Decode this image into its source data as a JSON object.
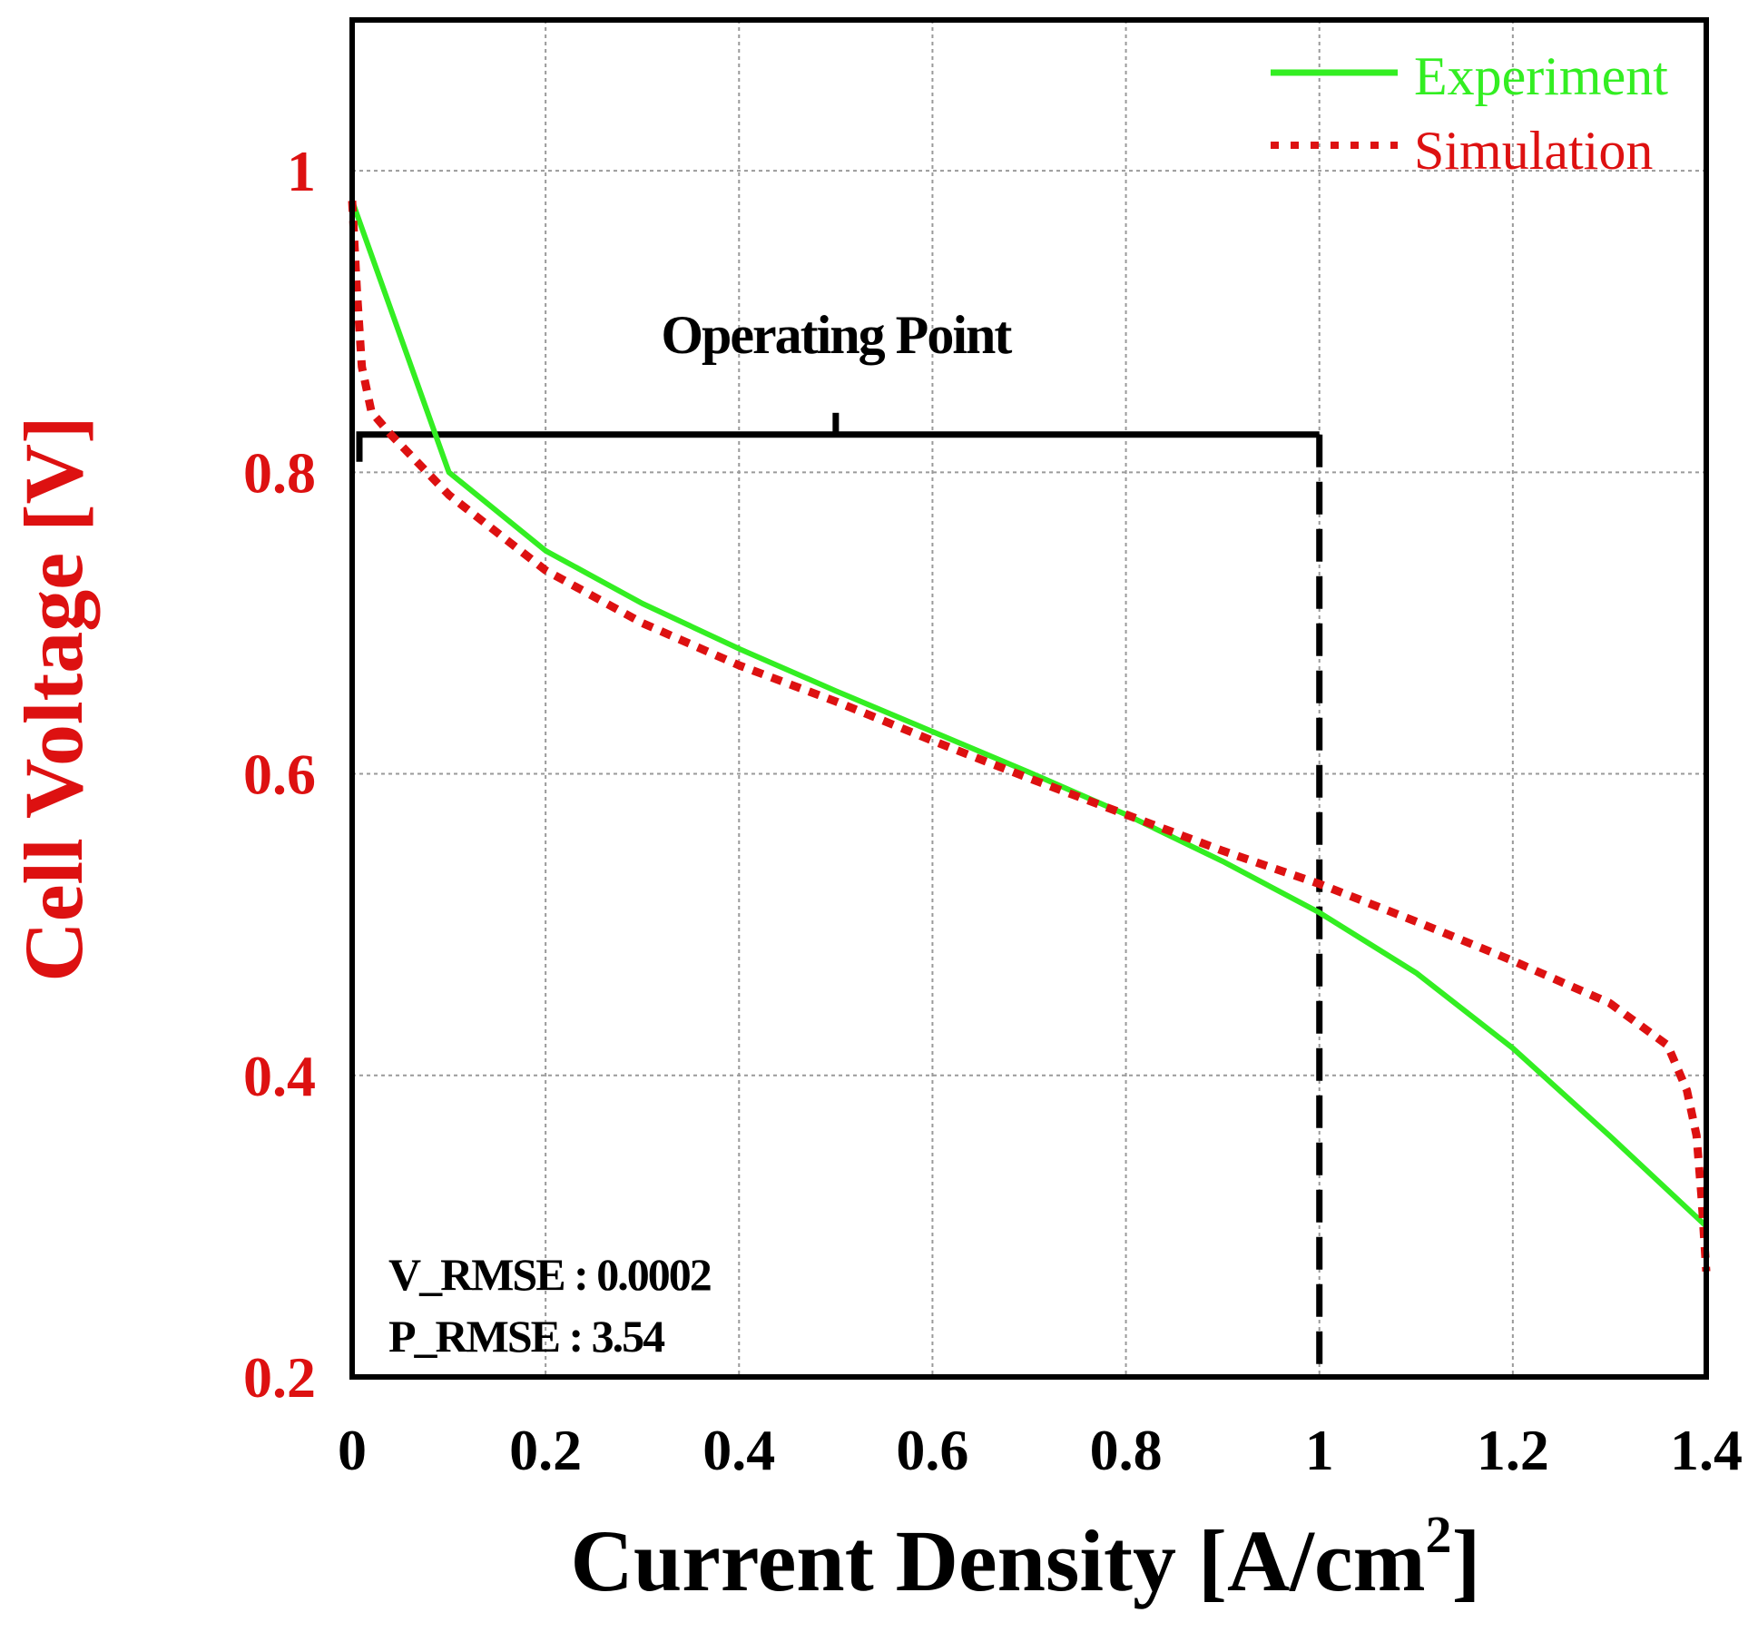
{
  "chart_data": {
    "type": "line",
    "xlabel": "Current Density [A/cm",
    "xlabel_sup": "2",
    "xlabel_end": "]",
    "ylabel": "Cell Voltage [V]",
    "xlim": [
      0,
      1.4
    ],
    "ylim": [
      0.2,
      1.1
    ],
    "x_ticks": [
      0,
      0.2,
      0.4,
      0.6,
      0.8,
      1.0,
      1.2,
      1.4
    ],
    "x_tick_labels": [
      "0",
      "0.2",
      "0.4",
      "0.6",
      "0.8",
      "1",
      "1.2",
      "1.4"
    ],
    "y_ticks": [
      0.2,
      0.4,
      0.6,
      0.8,
      1.0
    ],
    "y_tick_labels": [
      "0.2",
      "0.4",
      "0.6",
      "0.8",
      "1"
    ],
    "grid": true,
    "legend_position": "top-right",
    "series": [
      {
        "name": "Experiment",
        "color": "#33ee22",
        "style": "solid",
        "x": [
          0.0,
          0.1,
          0.2,
          0.3,
          0.4,
          0.5,
          0.6,
          0.7,
          0.8,
          0.9,
          1.0,
          1.1,
          1.2,
          1.3,
          1.4
        ],
        "y": [
          0.98,
          0.8,
          0.748,
          0.713,
          0.683,
          0.655,
          0.628,
          0.601,
          0.573,
          0.542,
          0.508,
          0.468,
          0.418,
          0.36,
          0.3
        ]
      },
      {
        "name": "Simulation",
        "color": "#dd1111",
        "style": "dotted",
        "x": [
          0.0,
          0.005,
          0.01,
          0.02,
          0.04,
          0.07,
          0.1,
          0.2,
          0.3,
          0.4,
          0.5,
          0.6,
          0.7,
          0.8,
          0.9,
          1.0,
          1.1,
          1.2,
          1.3,
          1.36,
          1.38,
          1.39,
          1.395,
          1.4
        ],
        "y": [
          0.98,
          0.92,
          0.87,
          0.84,
          0.825,
          0.805,
          0.785,
          0.735,
          0.7,
          0.672,
          0.648,
          0.622,
          0.597,
          0.573,
          0.549,
          0.527,
          0.502,
          0.476,
          0.448,
          0.42,
          0.39,
          0.36,
          0.32,
          0.27
        ]
      }
    ],
    "operating_point": {
      "label": "Operating Point",
      "x_start": 0.0,
      "x_end": 1.0,
      "y_level": 0.825
    },
    "annotations": [
      "V_RMSE : 0.0002",
      "P_RMSE : 3.54"
    ]
  },
  "colors": {
    "y_axis_text": "#dd1111",
    "experiment_text": "#33ee22",
    "simulation_text": "#dd1111"
  }
}
